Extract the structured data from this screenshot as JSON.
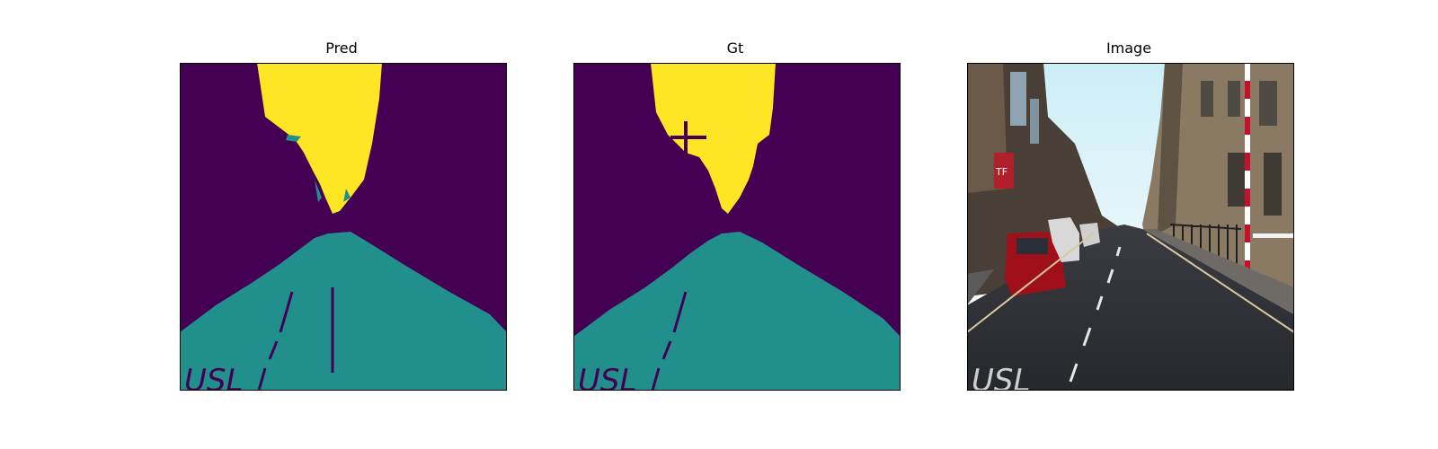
{
  "figure": {
    "panels": [
      {
        "title": "Pred"
      },
      {
        "title": "Gt"
      },
      {
        "title": "Image"
      }
    ]
  },
  "colors": {
    "background_class": "#440154",
    "road_class": "#21908d",
    "sky_class": "#fde725",
    "border": "#000000"
  },
  "scene": {
    "road_marking_text": "USL",
    "shop_sign_text": "TF"
  }
}
